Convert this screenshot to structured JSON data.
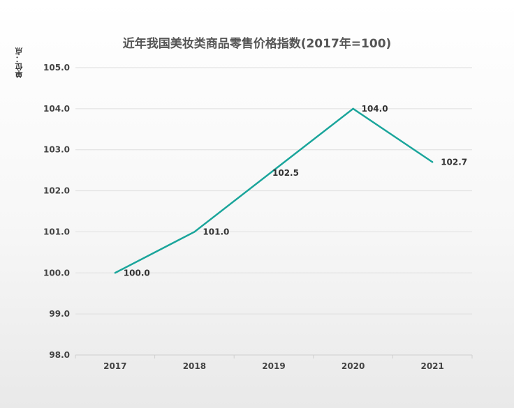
{
  "chart_data": {
    "type": "line",
    "title": "近年我国美妆类商品零售价格指数(2017年=100)",
    "unit_label": "单位：点",
    "categories": [
      "2017",
      "2018",
      "2019",
      "2020",
      "2021"
    ],
    "series": [
      {
        "values": [
          100.0,
          101.0,
          102.5,
          104.0,
          102.7
        ]
      }
    ],
    "data_labels": [
      "100.0",
      "101.0",
      "102.5",
      "104.0",
      "102.7"
    ],
    "ylim": [
      98.0,
      105.0
    ],
    "yticks": [
      "98.0",
      "99.0",
      "100.0",
      "101.0",
      "102.0",
      "103.0",
      "104.0",
      "105.0"
    ],
    "grid": true,
    "line_color": "#1aa59b"
  }
}
